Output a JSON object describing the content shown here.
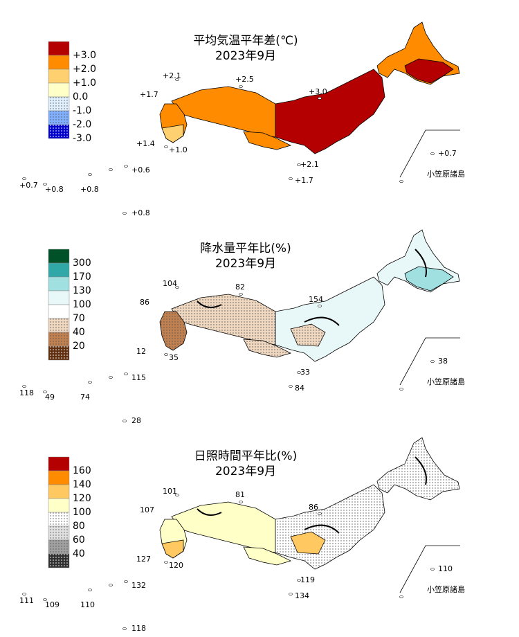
{
  "panels": [
    {
      "title": "平均気温平年差(℃)",
      "subtitle": "2023年9月",
      "swatches": [
        "#b40000",
        "#ff8c00",
        "#ffd070",
        "#ffffc8",
        "#e0f0ff",
        "#80b0ff",
        "#0000c8"
      ],
      "legend_labels": [
        "+3.0",
        "+2.0",
        "+1.0",
        "0.0",
        "-1.0",
        "-2.0",
        "-3.0"
      ],
      "station_labels": [
        "+2.1",
        "+2.5",
        "+1.7",
        "+3.0",
        "+1.4",
        "+1.0",
        "+0.7",
        "+2.1",
        "+0.6",
        "+0.7",
        "+0.8",
        "+0.8",
        "+1.7",
        "+0.8"
      ],
      "inset_label": "小笠原諸島"
    },
    {
      "title": "降水量平年比(%)",
      "subtitle": "2023年9月",
      "swatches": [
        "#005028",
        "#30a8a8",
        "#a0e0e0",
        "#e8f8f8",
        "#ffffff",
        "#f0d8c0",
        "#c08050",
        "#603010"
      ],
      "legend_labels": [
        "300",
        "170",
        "130",
        "100",
        "70",
        "40",
        "20"
      ],
      "station_labels": [
        "104",
        "82",
        "86",
        "154",
        "12",
        "35",
        "38",
        "33",
        "115",
        "118",
        "49",
        "74",
        "84",
        "28"
      ],
      "inset_label": "小笠原諸島"
    },
    {
      "title": "日照時間平年比(%)",
      "subtitle": "2023年9月",
      "swatches": [
        "#b40000",
        "#ff8c00",
        "#ffc860",
        "#ffffc8",
        "#ffffff",
        "#e0e0e0",
        "#a0a0a0",
        "#303030"
      ],
      "legend_labels": [
        "160",
        "140",
        "120",
        "100",
        "80",
        "60",
        "40"
      ],
      "station_labels": [
        "101",
        "81",
        "107",
        "86",
        "127",
        "120",
        "110",
        "119",
        "132",
        "111",
        "109",
        "110",
        "134",
        "118"
      ],
      "inset_label": "小笠原諸島"
    }
  ]
}
